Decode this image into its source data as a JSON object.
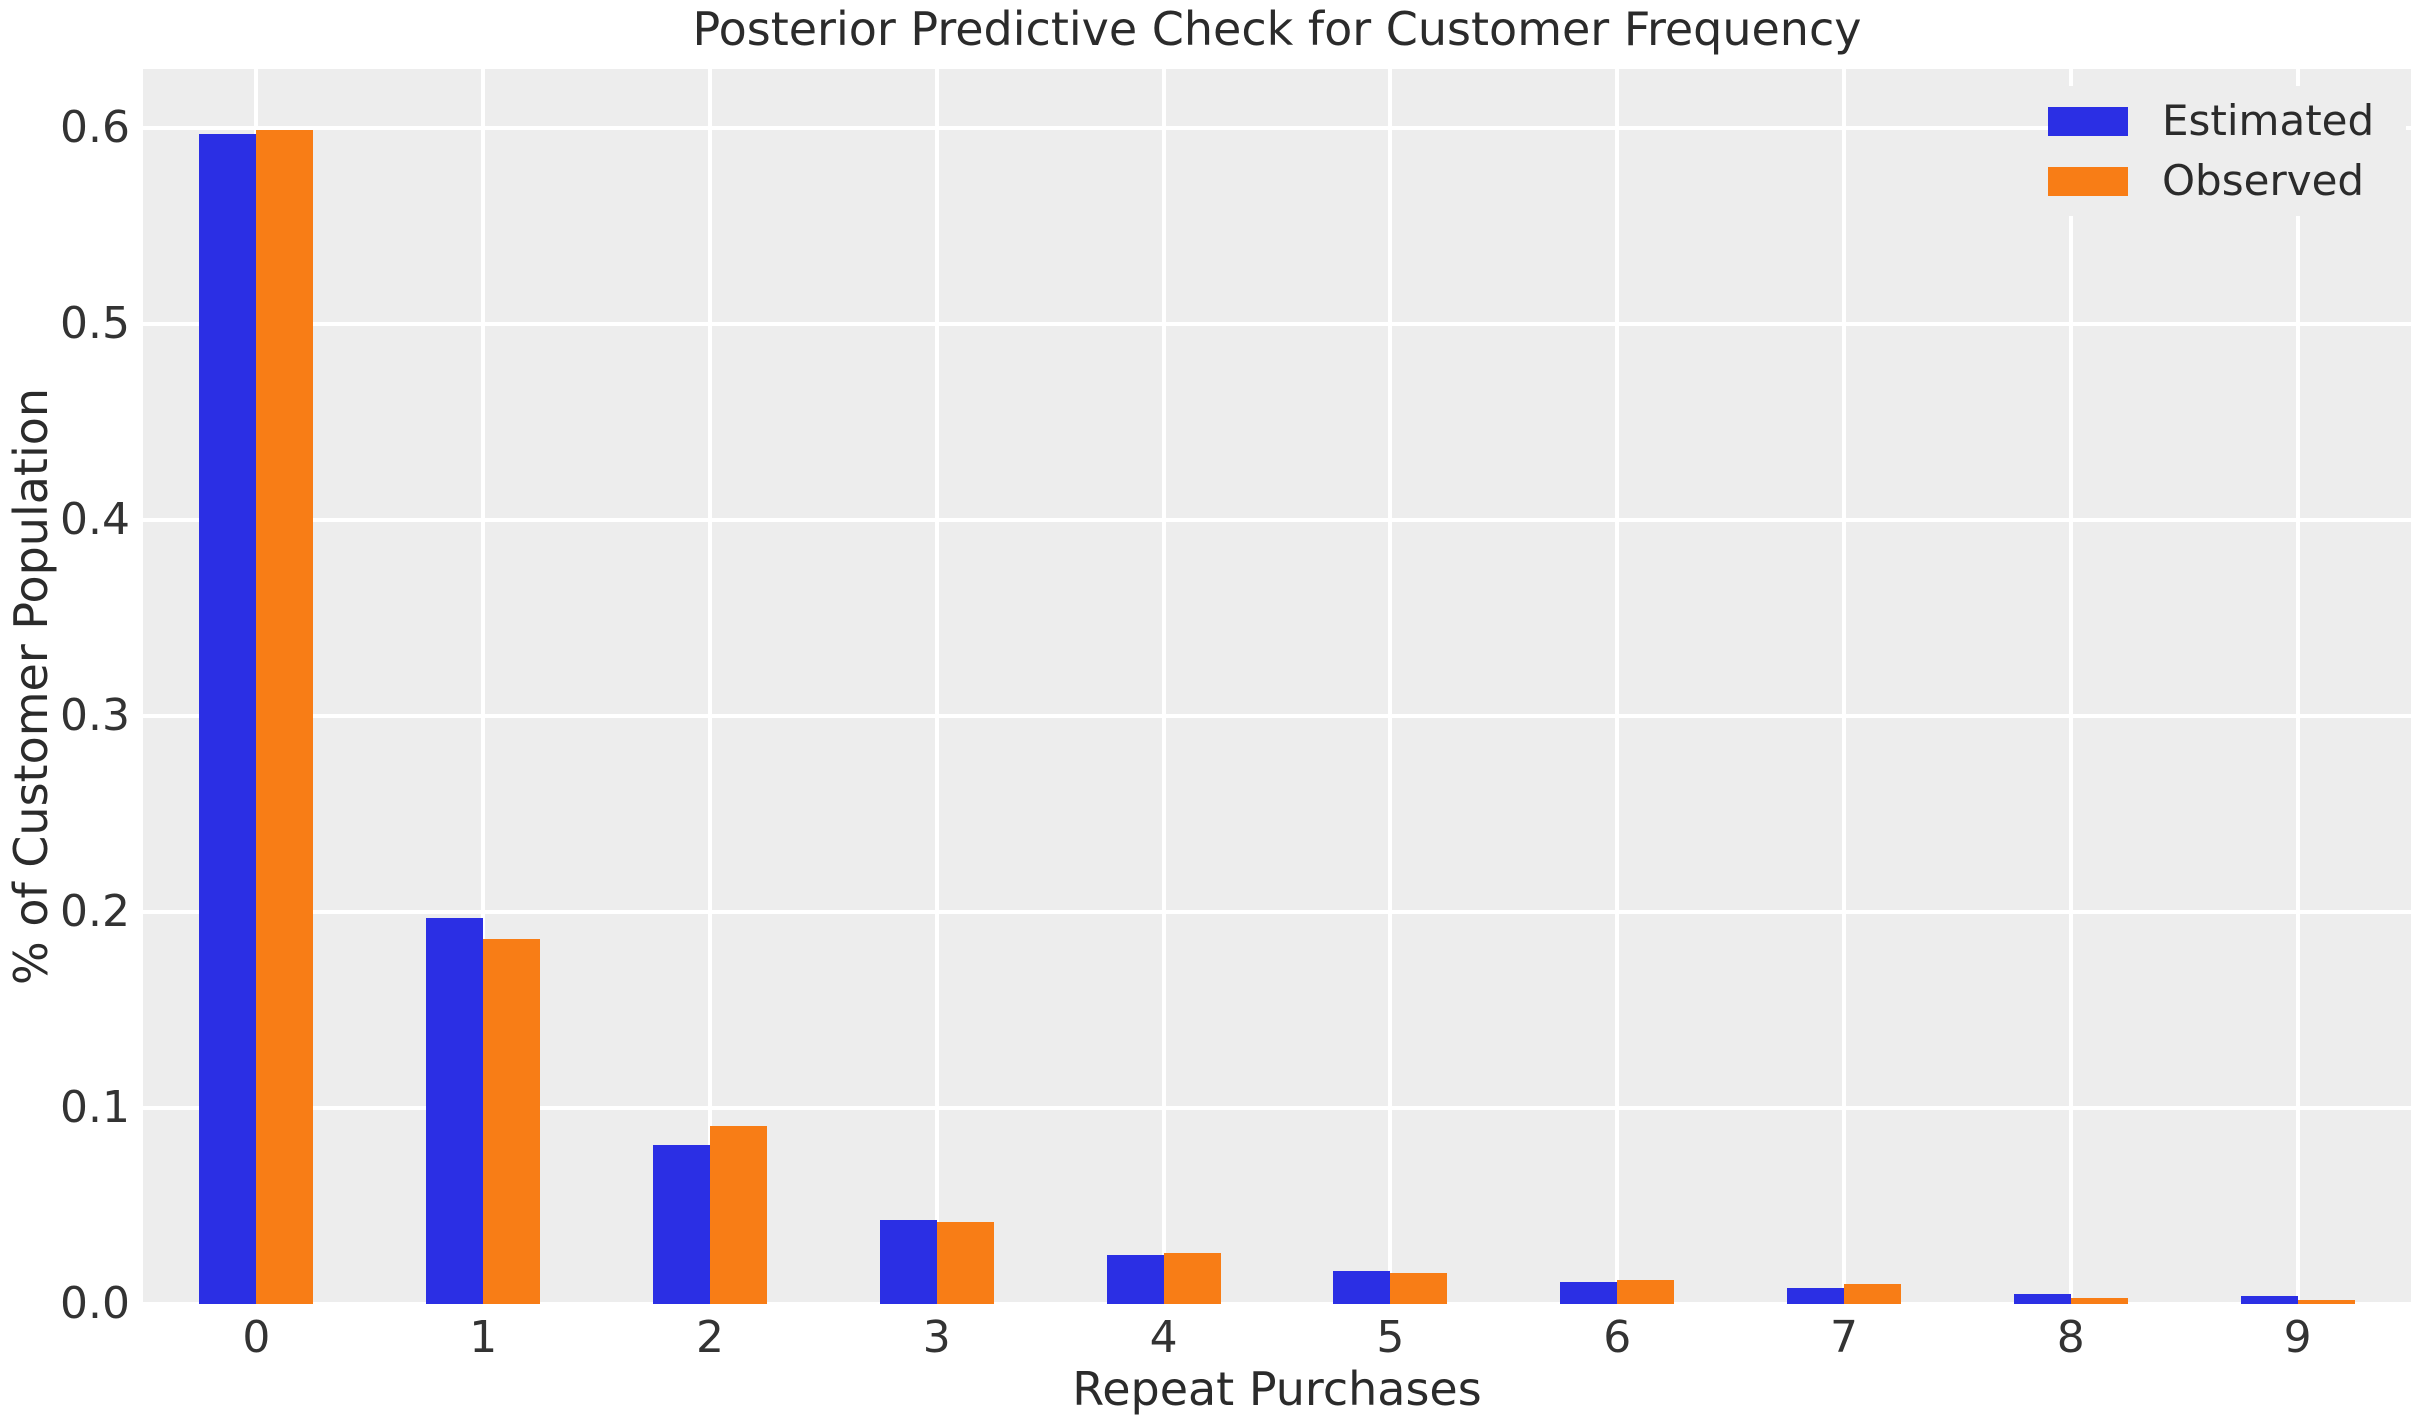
{
  "chart_data": {
    "type": "bar",
    "title": "Posterior Predictive Check for Customer Frequency",
    "xlabel": "Repeat Purchases",
    "ylabel": "% of Customer Population",
    "categories": [
      "0",
      "1",
      "2",
      "3",
      "4",
      "5",
      "6",
      "7",
      "8",
      "9"
    ],
    "series": [
      {
        "name": "Estimated",
        "color": "#2b2fe4",
        "values": [
          0.597,
          0.197,
          0.081,
          0.043,
          0.025,
          0.017,
          0.011,
          0.008,
          0.005,
          0.004
        ]
      },
      {
        "name": "Observed",
        "color": "#f87d16",
        "values": [
          0.599,
          0.186,
          0.091,
          0.042,
          0.026,
          0.016,
          0.012,
          0.01,
          0.003,
          0.002
        ]
      }
    ],
    "ylim": [
      0,
      0.63
    ],
    "yticks": [
      "0.0",
      "0.1",
      "0.2",
      "0.3",
      "0.4",
      "0.5",
      "0.6"
    ],
    "ytick_values": [
      0.0,
      0.1,
      0.2,
      0.3,
      0.4,
      0.5,
      0.6
    ],
    "grid": true,
    "grid_color": "#ffffff",
    "plot_bg": "#ededed",
    "legend_position": "upper right"
  }
}
